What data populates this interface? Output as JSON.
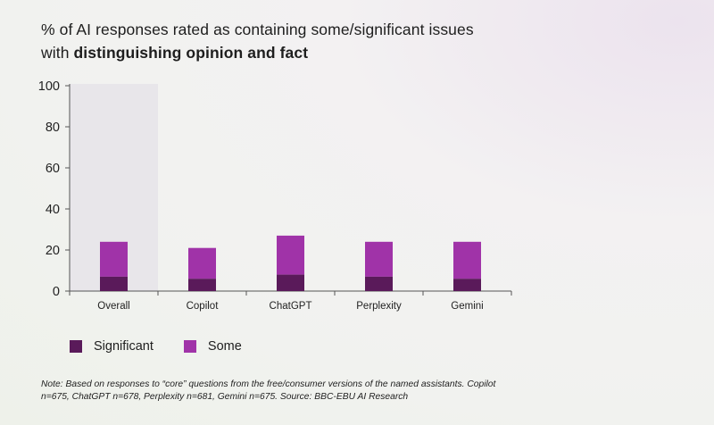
{
  "header": {
    "title_prefix": "% of AI responses rated as containing some/significant issues with ",
    "title_bold": "distinguishing opinion and fact"
  },
  "colors": {
    "significant": "#5a1a5a",
    "some": "#a033a8",
    "highlight_bg": "#e8e6ea",
    "axis": "#555555"
  },
  "chart_data": {
    "type": "bar",
    "stacked": true,
    "categories": [
      "Overall",
      "Copilot",
      "ChatGPT",
      "Perplexity",
      "Gemini"
    ],
    "series": [
      {
        "name": "Significant",
        "values": [
          7,
          6,
          8,
          7,
          6
        ]
      },
      {
        "name": "Some",
        "values": [
          17,
          15,
          19,
          17,
          18
        ]
      }
    ],
    "ylim": [
      0,
      100
    ],
    "yticks": [
      0,
      20,
      40,
      60,
      80,
      100
    ],
    "highlighted_category": "Overall",
    "legend": [
      "Significant",
      "Some"
    ],
    "legend_position": "bottom-left"
  },
  "legend": {
    "significant_label": "Significant",
    "some_label": "Some"
  },
  "footnote": "Note: Based on responses to “core” questions from the free/consumer versions of the named assistants. Copilot n=675, ChatGPT n=678, Perplexity n=681, Gemini n=675. Source: BBC-EBU AI Research"
}
